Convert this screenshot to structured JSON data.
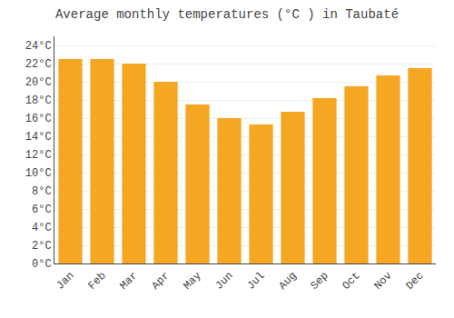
{
  "chart_data": {
    "type": "bar",
    "title": "Average monthly temperatures (°C ) in Taubaté",
    "categories": [
      "Jan",
      "Feb",
      "Mar",
      "Apr",
      "May",
      "Jun",
      "Jul",
      "Aug",
      "Sep",
      "Oct",
      "Nov",
      "Dec"
    ],
    "values": [
      22.5,
      22.5,
      22.0,
      20.0,
      17.5,
      16.0,
      15.3,
      16.7,
      18.2,
      19.5,
      20.7,
      21.5
    ],
    "color": "#F5A623",
    "ylim": [
      0,
      25
    ],
    "yticks": [
      {
        "value": 0,
        "label": "0°C"
      },
      {
        "value": 2,
        "label": "2°C"
      },
      {
        "value": 4,
        "label": "4°C"
      },
      {
        "value": 6,
        "label": "6°C"
      },
      {
        "value": 8,
        "label": "8°C"
      },
      {
        "value": 10,
        "label": "10°C"
      },
      {
        "value": 12,
        "label": "12°C"
      },
      {
        "value": 14,
        "label": "14°C"
      },
      {
        "value": 16,
        "label": "16°C"
      },
      {
        "value": 18,
        "label": "18°C"
      },
      {
        "value": 20,
        "label": "20°C"
      },
      {
        "value": 22,
        "label": "22°C"
      },
      {
        "value": 24,
        "label": "24°C"
      }
    ],
    "grid": true
  }
}
